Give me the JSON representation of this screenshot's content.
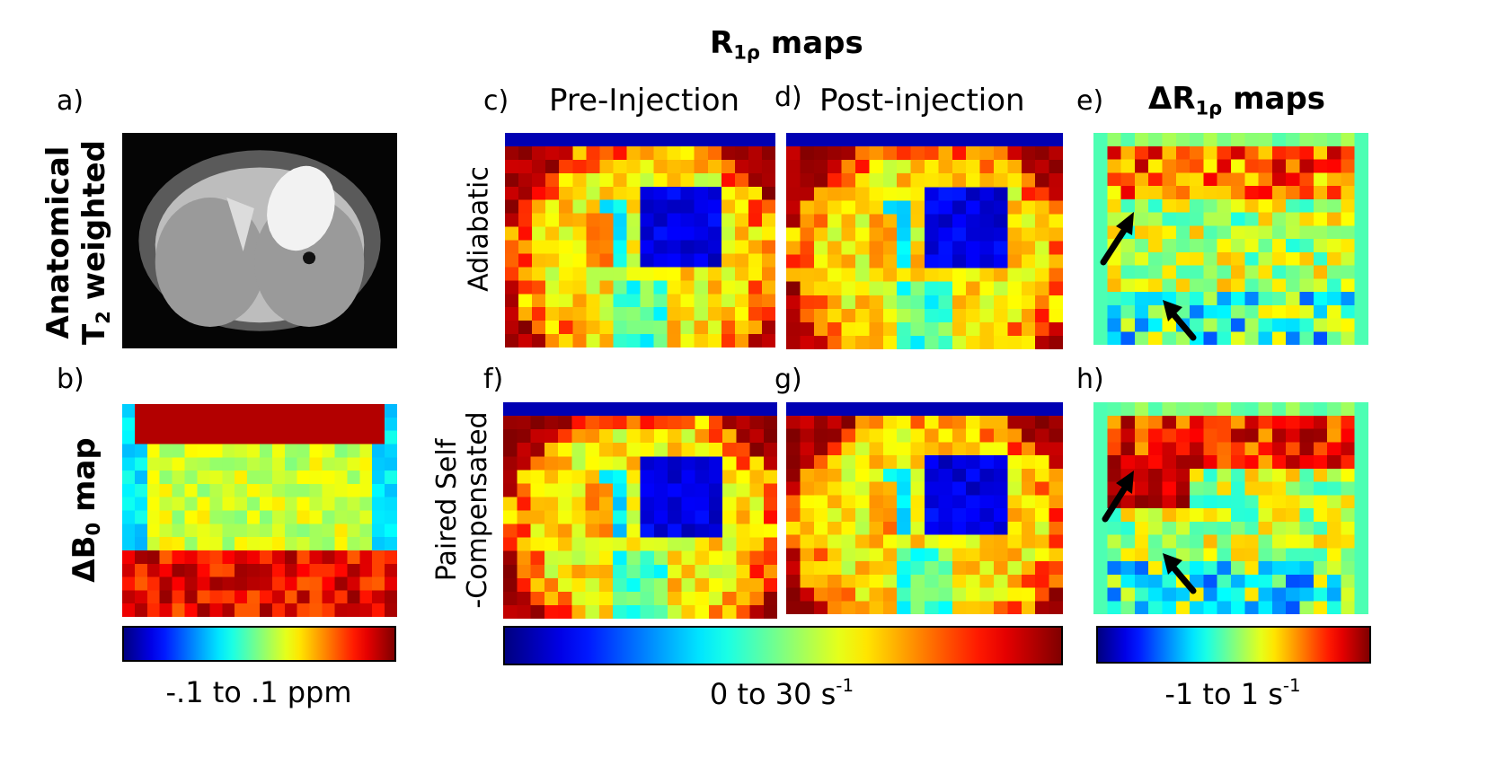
{
  "figure": {
    "main_title": {
      "main": "R",
      "sub": "1ρ",
      "rest": " maps"
    },
    "panel_labels": {
      "a": "a)",
      "b": "b)",
      "c": "c)",
      "d": "d)",
      "e": "e)",
      "f": "f)",
      "g": "g)",
      "h": "h)"
    },
    "column_titles": {
      "pre": "Pre-Injection",
      "post": "Post-injection",
      "delta": {
        "prefix": "ΔR",
        "sub": "1ρ",
        "rest": " maps"
      }
    },
    "row_labels": {
      "adiabatic": "Adiabatic",
      "psc_line1": "Paired Self",
      "psc_line2": "-Compensated"
    },
    "left_labels": {
      "anatomical_line1": "Anatomical",
      "t2_prefix": "T",
      "t2_sub": "2",
      "t2_rest": " weighted",
      "db0_prefix": "ΔB",
      "db0_sub": "0",
      "db0_rest": " map"
    },
    "colorbars": {
      "b0": {
        "text": "-.1 to .1 ppm"
      },
      "r1rho": {
        "text": "0 to 30 s",
        "sup": "-1"
      },
      "delta": {
        "text": "-1 to 1 s",
        "sup": "-1"
      }
    },
    "colormap": "jet",
    "icons": {
      "arrow": "black-arrow-icon"
    }
  }
}
